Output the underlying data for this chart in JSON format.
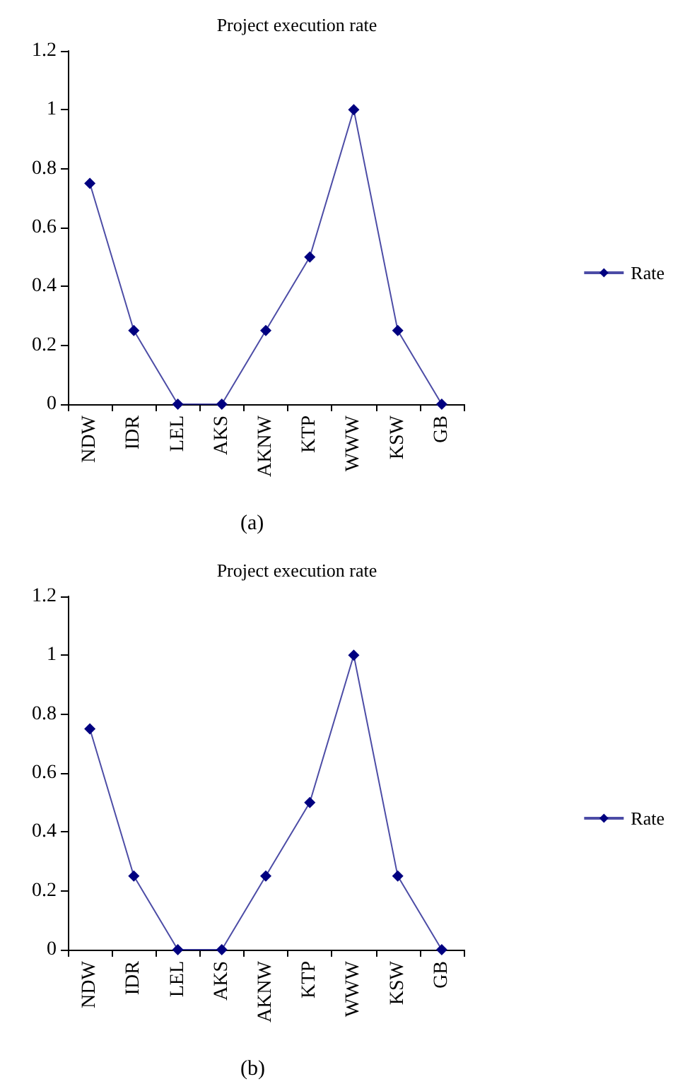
{
  "chart_data": [
    {
      "type": "line",
      "title": "Project execution rate",
      "categories": [
        "NDW",
        "IDR",
        "LEL",
        "AKS",
        "AKNW",
        "KTP",
        "WWW",
        "KSW",
        "GB"
      ],
      "series": [
        {
          "name": "Rate",
          "color": "#000080",
          "values": [
            0.75,
            0.25,
            0,
            0,
            0.25,
            0.5,
            1,
            0.25,
            0
          ]
        }
      ],
      "ylim": [
        0,
        1.2
      ],
      "yticks": [
        0,
        0.2,
        0.4,
        0.6,
        0.8,
        1,
        1.2
      ],
      "grid": false,
      "legend": "right",
      "marker": "diamond",
      "line_style": "solid",
      "annotations": [
        "(a)"
      ]
    },
    {
      "type": "line",
      "title": "Project execution rate",
      "categories": [
        "NDW",
        "IDR",
        "LEL",
        "AKS",
        "AKNW",
        "KTP",
        "WWW",
        "KSW",
        "GB"
      ],
      "series": [
        {
          "name": "Rate",
          "color": "#000080",
          "values": [
            0.75,
            0.25,
            0,
            0,
            0.25,
            0.5,
            1,
            0.25,
            0
          ]
        }
      ],
      "ylim": [
        0,
        1.2
      ],
      "yticks": [
        0,
        0.2,
        0.4,
        0.6,
        0.8,
        1,
        1.2
      ],
      "grid": false,
      "legend": "right",
      "marker": "diamond",
      "line_style": "solid",
      "annotations": [
        "(b)"
      ]
    }
  ]
}
